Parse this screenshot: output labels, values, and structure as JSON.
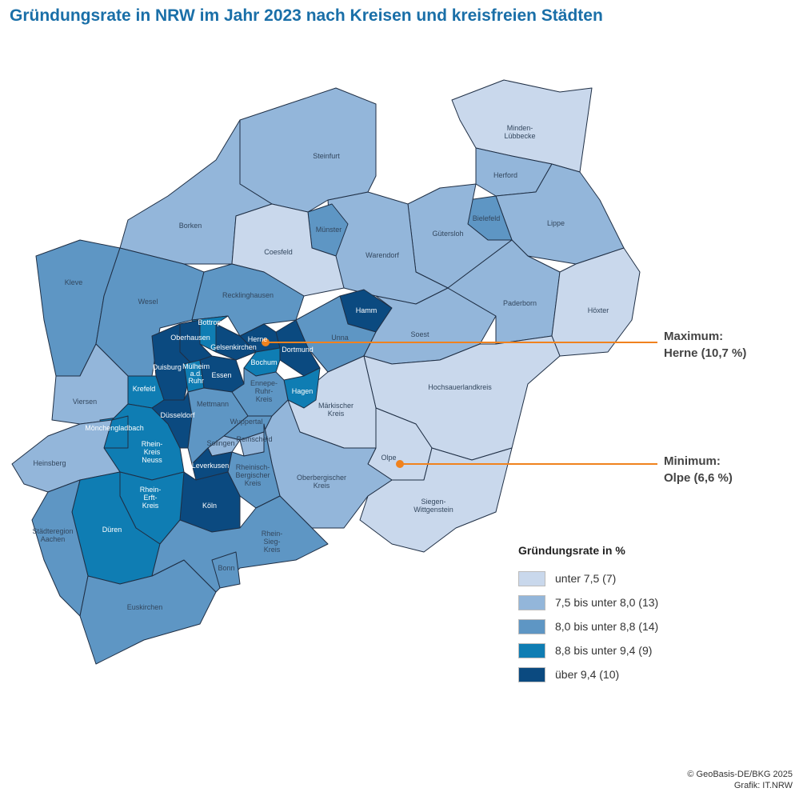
{
  "title": "Gründungsrate in NRW im Jahr 2023 nach Kreisen und kreisfreien Städten",
  "legend": {
    "title": "Gründungsrate in %",
    "classes": [
      {
        "label": "unter 7,5 (7)",
        "color": "#c9d8ec"
      },
      {
        "label": "7,5 bis unter 8,0 (13)",
        "color": "#93b6da"
      },
      {
        "label": "8,0 bis unter 8,8 (14)",
        "color": "#5e96c4"
      },
      {
        "label": "8,8 bis unter 9,4 (9)",
        "color": "#0f7db3"
      },
      {
        "label": "über 9,4 (10)",
        "color": "#0b4a80"
      }
    ]
  },
  "annotations": {
    "color": "#f0821e",
    "max_label": "Maximum:",
    "max_value": "Herne (10,7 %)",
    "min_label": "Minimum:",
    "min_value": "Olpe (6,6 %)"
  },
  "regions": [
    {
      "name": "Minden-Lübbecke",
      "class": 0
    },
    {
      "name": "Herford",
      "class": 1
    },
    {
      "name": "Lippe",
      "class": 1
    },
    {
      "name": "Bielefeld",
      "class": 2
    },
    {
      "name": "Gütersloh",
      "class": 1
    },
    {
      "name": "Warendorf",
      "class": 1
    },
    {
      "name": "Münster",
      "class": 2
    },
    {
      "name": "Steinfurt",
      "class": 1
    },
    {
      "name": "Borken",
      "class": 1
    },
    {
      "name": "Coesfeld",
      "class": 0
    },
    {
      "name": "Kleve",
      "class": 2
    },
    {
      "name": "Wesel",
      "class": 2
    },
    {
      "name": "Recklinghausen",
      "class": 2
    },
    {
      "name": "Hamm",
      "class": 4
    },
    {
      "name": "Unna",
      "class": 2
    },
    {
      "name": "Soest",
      "class": 1
    },
    {
      "name": "Paderborn",
      "class": 1
    },
    {
      "name": "Höxter",
      "class": 0
    },
    {
      "name": "Hochsauerlandkreis",
      "class": 0
    },
    {
      "name": "Märkischer Kreis",
      "class": 0
    },
    {
      "name": "Olpe",
      "class": 0
    },
    {
      "name": "Siegen-Wittgenstein",
      "class": 0
    },
    {
      "name": "Oberbergischer Kreis",
      "class": 1
    },
    {
      "name": "Dortmund",
      "class": 4
    },
    {
      "name": "Herne",
      "class": 4
    },
    {
      "name": "Gelsenkirchen",
      "class": 4
    },
    {
      "name": "Bottrop",
      "class": 3
    },
    {
      "name": "Oberhausen",
      "class": 4
    },
    {
      "name": "Duisburg",
      "class": 4
    },
    {
      "name": "Mülheim a.d. Ruhr",
      "class": 3
    },
    {
      "name": "Essen",
      "class": 4
    },
    {
      "name": "Bochum",
      "class": 3
    },
    {
      "name": "Hagen",
      "class": 3
    },
    {
      "name": "Ennepe-Ruhr-Kreis",
      "class": 2
    },
    {
      "name": "Krefeld",
      "class": 3
    },
    {
      "name": "Viersen",
      "class": 1
    },
    {
      "name": "Mönchengladbach",
      "class": 3
    },
    {
      "name": "Rhein-Kreis Neuss",
      "class": 3
    },
    {
      "name": "Düsseldorf",
      "class": 4
    },
    {
      "name": "Mettmann",
      "class": 2
    },
    {
      "name": "Wuppertal",
      "class": 2
    },
    {
      "name": "Solingen",
      "class": 1
    },
    {
      "name": "Remscheid",
      "class": 1
    },
    {
      "name": "Leverkusen",
      "class": 4
    },
    {
      "name": "Rheinisch-Bergischer Kreis",
      "class": 2
    },
    {
      "name": "Köln",
      "class": 4
    },
    {
      "name": "Rhein-Erft-Kreis",
      "class": 3
    },
    {
      "name": "Heinsberg",
      "class": 1
    },
    {
      "name": "Düren",
      "class": 3
    },
    {
      "name": "Städteregion Aachen",
      "class": 2
    },
    {
      "name": "Euskirchen",
      "class": 2
    },
    {
      "name": "Rhein-Sieg-Kreis",
      "class": 2
    },
    {
      "name": "Bonn",
      "class": 2
    }
  ],
  "credits": {
    "line1": "© GeoBasis-DE/BKG 2025",
    "line2": "Grafik: IT.NRW"
  }
}
